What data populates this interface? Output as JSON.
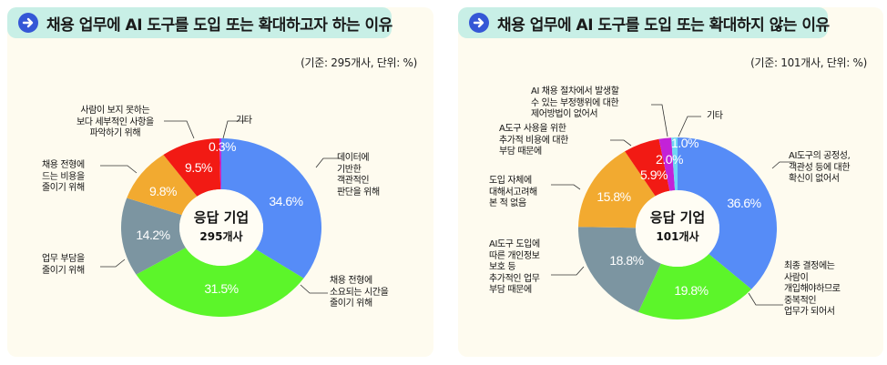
{
  "left_panel": {
    "title": "채용 업무에 AI 도구를 도입 또는 확대하고자 하는 이유",
    "basis": "(기준: 295개사, 단위: %)",
    "center_line1": "응답 기업",
    "center_line2": "295개사",
    "labels": {
      "others": "기타",
      "details": [
        "사람이 보지 못하는",
        "보다 세부적인 사항을",
        "파악하기 위해"
      ],
      "cost": [
        "채용 전형에",
        "드는 비용을",
        "줄이기 위해"
      ],
      "burden": [
        "업무 부담을",
        "줄이기 위해"
      ],
      "data": [
        "데이터에",
        "기반한",
        "객관적인",
        "판단을 위해"
      ],
      "time": [
        "채용 전형에",
        "소요되는 시간을",
        "줄이기 위해"
      ]
    }
  },
  "right_panel": {
    "title": "채용 업무에 AI 도구를 도입 또는 확대하지 않는 이유",
    "basis": "(기준: 101개사, 단위: %)",
    "center_line1": "응답 기업",
    "center_line2": "101개사",
    "labels": {
      "fraud": [
        "AI 채용 절차에서 발생할",
        "수 있는 부정행위에 대한",
        "제어방법이 없어서"
      ],
      "others": "기타",
      "cost": [
        "A도구 사용을 위한",
        "추가적 비용에 대한",
        "부담 때문에"
      ],
      "never": [
        "도입 자체에",
        "대해서고려해",
        "본 적 없음"
      ],
      "privacy": [
        "AI도구 도입에",
        "따른 개인정보",
        "보호 등",
        "추가적인 업무",
        "부담 때문에"
      ],
      "fairness": [
        "AI도구의 공정성,",
        "객관성 등에 대한",
        "확신이 없어서"
      ],
      "duplicate": [
        "최종 결정에는",
        "사람이",
        "개입해야하므로",
        "중복적인",
        "업무가 되어서"
      ]
    }
  },
  "colors": {
    "blue": "#568cf7",
    "green": "#5cf52a",
    "gray": "#7c95a1",
    "orange": "#f2aa30",
    "red": "#f21a14",
    "purple": "#c322d8",
    "lightblue": "#6fd6f5",
    "title_bg": "#c8efe6",
    "panel_bg": "#fefbef",
    "arrow_icon": "#3557d6"
  },
  "chart_data": [
    {
      "type": "pie",
      "title": "채용 업무에 AI 도구를 도입 또는 확대하고자 하는 이유",
      "subtitle": "(기준: 295개사, 단위: %)",
      "center_text": [
        "응답 기업",
        "295개사"
      ],
      "categories": [
        "데이터에 기반한 객관적인 판단을 위해",
        "채용 전형에 소요되는 시간을 줄이기 위해",
        "업무 부담을 줄이기 위해",
        "채용 전형에 드는 비용을 줄이기 위해",
        "사람이 보지 못하는 보다 세부적인 사항을 파악하기 위해",
        "기타"
      ],
      "values": [
        34.6,
        31.5,
        14.2,
        9.8,
        9.5,
        0.3
      ],
      "value_labels": [
        "34.6%",
        "31.5%",
        "14.2%",
        "9.8%",
        "9.5%",
        "0.3%"
      ],
      "colors": [
        "#568cf7",
        "#5cf52a",
        "#7c95a1",
        "#f2aa30",
        "#f21a14",
        "#c322d8"
      ]
    },
    {
      "type": "pie",
      "title": "채용 업무에 AI 도구를 도입 또는 확대하지 않는 이유",
      "subtitle": "(기준: 101개사, 단위: %)",
      "center_text": [
        "응답 기업",
        "101개사"
      ],
      "categories": [
        "AI도구의 공정성, 객관성 등에 대한 확신이 없어서",
        "최종 결정에는 사람이 개입해야하므로 중복적인 업무가 되어서",
        "AI도구 도입에 따른 개인정보 보호 등 추가적인 업무 부담 때문에",
        "도입 자체에 대해서고려해 본 적 없음",
        "A도구 사용을 위한 추가적 비용에 대한 부담 때문에",
        "AI 채용 절차에서 발생할 수 있는 부정행위에 대한 제어방법이 없어서",
        "기타"
      ],
      "values": [
        36.6,
        19.8,
        18.8,
        15.8,
        5.9,
        2.0,
        1.0
      ],
      "value_labels": [
        "36.6%",
        "19.8%",
        "18.8%",
        "15.8%",
        "5.9%",
        "2.0%",
        "1.0%"
      ],
      "colors": [
        "#568cf7",
        "#5cf52a",
        "#7c95a1",
        "#f2aa30",
        "#f21a14",
        "#c322d8",
        "#6fd6f5"
      ]
    }
  ]
}
